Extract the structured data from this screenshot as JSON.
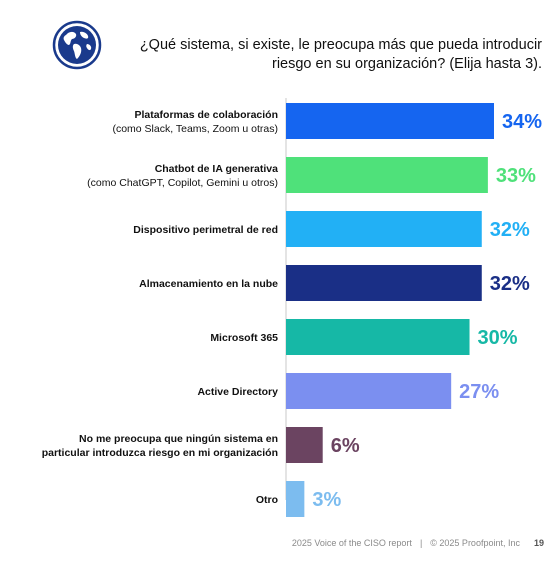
{
  "title": "¿Qué sistema, si existe, le preocupa más que pueda introducir riesgo en su organización? (Elija hasta 3).",
  "icon": "globe-icon",
  "footer": {
    "report": "2025 Voice of the CISO report",
    "separator": "|",
    "copyright": "© 2025 Proofpoint, Inc",
    "page": "19"
  },
  "chart_data": {
    "type": "bar",
    "orientation": "horizontal",
    "categories": [
      [
        "Plataformas de colaboración",
        "(como Slack, Teams, Zoom u otras)"
      ],
      [
        "Chatbot de IA generativa",
        "(como ChatGPT, Copilot, Gemini u otros)"
      ],
      [
        "Dispositivo perimetral de red"
      ],
      [
        "Almacenamiento en la nube"
      ],
      [
        "Microsoft 365"
      ],
      [
        "Active Directory"
      ],
      [
        "No me preocupa que ningún sistema en",
        "particular introduzca riesgo en mi organización"
      ],
      [
        "Otro"
      ]
    ],
    "values": [
      34,
      33,
      32,
      32,
      30,
      27,
      6,
      3
    ],
    "value_labels": [
      "34%",
      "33%",
      "32%",
      "32%",
      "30%",
      "27%",
      "6%",
      "3%"
    ],
    "colors": [
      "#1565f0",
      "#4fe17a",
      "#22b0f5",
      "#1a2f86",
      "#16b8a6",
      "#7b8ff0",
      "#6b4461",
      "#7cbcef"
    ],
    "xlim": [
      0,
      34
    ]
  }
}
